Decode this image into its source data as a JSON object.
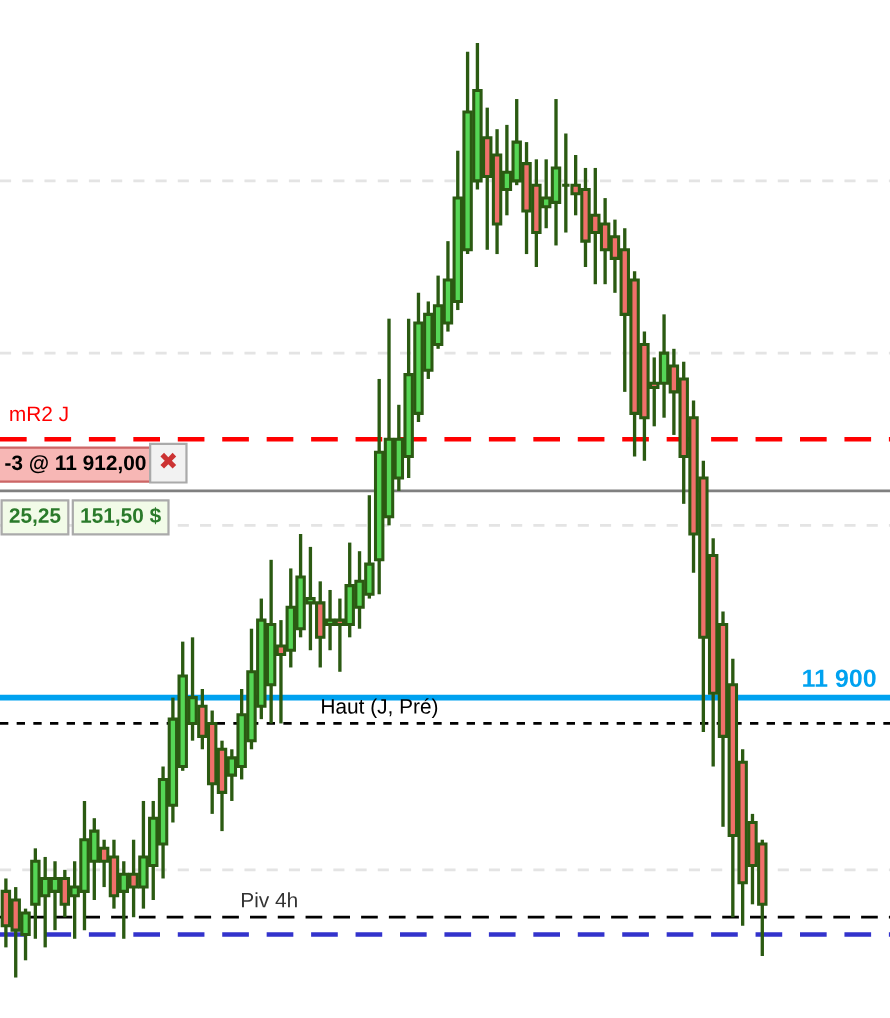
{
  "chart_data": {
    "type": "candlestick",
    "categories": [
      null,
      null,
      null,
      null,
      null,
      null,
      null,
      null,
      null,
      null,
      null,
      null,
      null,
      null,
      null,
      null,
      null,
      null,
      null,
      null,
      null,
      null,
      null,
      null,
      null,
      null,
      null,
      null,
      null,
      null,
      null,
      null,
      null,
      null,
      null,
      null,
      null,
      null,
      null,
      null,
      null,
      null,
      null,
      null,
      null,
      null,
      null,
      null,
      null,
      null,
      null,
      null,
      null,
      null,
      null,
      null,
      null,
      null,
      null,
      null,
      null,
      null,
      null,
      null,
      null,
      null,
      null,
      null,
      null,
      null,
      null,
      null,
      null,
      null,
      null,
      null,
      null,
      null
    ],
    "ohlc": [
      [
        11888.75,
        11889.5,
        11885.5,
        11886.75
      ],
      [
        11888.25,
        11889,
        11883.75,
        11886.5
      ],
      [
        11886.25,
        11887.75,
        11884.75,
        11887.5
      ],
      [
        11888,
        11891.25,
        11886,
        11890.5
      ],
      [
        11888.5,
        11890.75,
        11885.5,
        11889.5
      ],
      [
        11888.75,
        11890.5,
        11886.5,
        11889.5
      ],
      [
        11889.5,
        11890,
        11887.25,
        11888
      ],
      [
        11888.5,
        11890.5,
        11886,
        11889
      ],
      [
        11888.75,
        11894,
        11886.5,
        11891.75
      ],
      [
        11890.5,
        11893,
        11888.25,
        11892.25
      ],
      [
        11891.25,
        11891.75,
        11889,
        11890.5
      ],
      [
        11890.75,
        11891.75,
        11887.75,
        11888.5
      ],
      [
        11888.75,
        11890.5,
        11886,
        11889.75
      ],
      [
        11889.75,
        11891.75,
        11887.25,
        11889
      ],
      [
        11889,
        11894,
        11887.75,
        11890.75
      ],
      [
        11890.25,
        11894,
        11888.25,
        11893
      ],
      [
        11891.5,
        11896,
        11889.5,
        11895.25
      ],
      [
        11893.75,
        11900,
        11892.75,
        11898.75
      ],
      [
        11896,
        11903.25,
        11895.75,
        11901.25
      ],
      [
        11898.5,
        11903.5,
        11897.5,
        11900
      ],
      [
        11899.5,
        11900.5,
        11897,
        11897.75
      ],
      [
        11898.5,
        11899.25,
        11893.25,
        11895
      ],
      [
        11897,
        11897.5,
        11892.25,
        11894.5
      ],
      [
        11895.5,
        11897,
        11894,
        11896.5
      ],
      [
        11896,
        11900.5,
        11895.25,
        11899
      ],
      [
        11897.5,
        11904,
        11897,
        11901.5
      ],
      [
        11899.5,
        11905.75,
        11898.75,
        11904.5
      ],
      [
        11900.75,
        11908,
        11898.5,
        11904.25
      ],
      [
        11903,
        11904.5,
        11898.5,
        11902.5
      ],
      [
        11902.75,
        11907.5,
        11901.75,
        11905.25
      ],
      [
        11904,
        11909.5,
        11903.5,
        11907
      ],
      [
        11905.5,
        11908.75,
        11902.75,
        11905.75
      ],
      [
        11905.5,
        11906.75,
        11901.75,
        11903.5
      ],
      [
        11904.25,
        11906.25,
        11902.75,
        11904.5
      ],
      [
        11904.5,
        11905.75,
        11901.5,
        11904.25
      ],
      [
        11904.25,
        11909,
        11903.5,
        11906.5
      ],
      [
        11905.25,
        11908.5,
        11904,
        11906.75
      ],
      [
        11906,
        11911.75,
        11905.75,
        11907.75
      ],
      [
        11908,
        11918.5,
        11906,
        11914.25
      ],
      [
        11910.5,
        11922,
        11910,
        11915
      ],
      [
        11912.75,
        11917,
        11912,
        11915
      ],
      [
        11914,
        11922,
        11912.75,
        11918.75
      ],
      [
        11916.5,
        11923.5,
        11916,
        11921.75
      ],
      [
        11919,
        11923,
        11918.5,
        11922.25
      ],
      [
        11920.5,
        11924.5,
        11920.25,
        11922.75
      ],
      [
        11921.75,
        11926.5,
        11921.25,
        11924.25
      ],
      [
        11923,
        11931.75,
        11922.5,
        11929
      ],
      [
        11926,
        11937.5,
        11925.75,
        11934
      ],
      [
        11930,
        11938,
        11929.5,
        11935.25
      ],
      [
        11932.5,
        11934.25,
        11926,
        11930.25
      ],
      [
        11931.5,
        11933,
        11925.75,
        11927.5
      ],
      [
        11929.5,
        11933.25,
        11928,
        11930.5
      ],
      [
        11930,
        11934.75,
        11929.75,
        11932.25
      ],
      [
        11931,
        11932.25,
        11925.75,
        11928.25
      ],
      [
        11929.75,
        11931.25,
        11925,
        11927
      ],
      [
        11928.5,
        11931.25,
        11927.25,
        11929
      ],
      [
        11928.75,
        11934.75,
        11926.25,
        11930.75
      ],
      [
        11929.75,
        11932.75,
        11927,
        11929.75
      ],
      [
        11929.75,
        11931.5,
        11928,
        11929.25
      ],
      [
        11929.5,
        11930.75,
        11925,
        11926.5
      ],
      [
        11928,
        11930.75,
        11924,
        11927
      ],
      [
        11927.5,
        11929,
        11924,
        11926
      ],
      [
        11926.75,
        11927.75,
        11923.5,
        11925.5
      ],
      [
        11926,
        11927.25,
        11917.75,
        11922.25
      ],
      [
        11924.25,
        11924.75,
        11914,
        11916.5
      ],
      [
        11920.5,
        11921.25,
        11913.75,
        11916.25
      ],
      [
        11918.25,
        11919.75,
        11915.75,
        11918
      ],
      [
        11918.25,
        11922.25,
        11916.25,
        11920
      ],
      [
        11919.25,
        11920.25,
        11915.25,
        11917.75
      ],
      [
        11918.5,
        11919.5,
        11911.25,
        11914
      ],
      [
        11916.25,
        11917.25,
        11907.25,
        11909.5
      ],
      [
        11912.75,
        11913.75,
        11898,
        11903.5
      ],
      [
        11908.25,
        11909.25,
        11896,
        11900.25
      ],
      [
        11904.25,
        11905,
        11892.5,
        11897.75
      ],
      [
        11900.75,
        11902.25,
        11887.25,
        11892
      ],
      [
        11896.25,
        11897,
        11886.75,
        11889.25
      ],
      [
        11892.75,
        11893.25,
        11888,
        11890.25
      ],
      [
        11891.5,
        11891.75,
        11885,
        11888
      ]
    ],
    "ylim": [
      11881.4,
      11940.5
    ],
    "yticks": [
      {
        "value": 11890,
        "label": null
      },
      {
        "value": 11900,
        "label": null
      },
      {
        "value": 11910,
        "label": null
      },
      {
        "value": 11920,
        "label": null
      },
      {
        "value": 11930,
        "label": null
      }
    ],
    "grid": "y",
    "ref_lines": [
      {
        "axis": "y",
        "value": 11915,
        "label": "mR2 J",
        "color": "#ff0000",
        "line_style": "dashed"
      },
      {
        "axis": "y",
        "value": 11912,
        "label": "-3 @ 11 912,00",
        "color": "#808080",
        "line_style": "solid"
      },
      {
        "axis": "y",
        "value": 11900,
        "label": "11 900",
        "color": "#00a2f0",
        "line_style": "solid"
      },
      {
        "axis": "y",
        "value": 11898.5,
        "label": "Haut (J, Pré)",
        "color": "#000000",
        "line_style": "dotted"
      },
      {
        "axis": "y",
        "value": 11887.25,
        "label": "Piv 4h",
        "color": "#000000",
        "line_style": "dashed"
      },
      {
        "axis": "y",
        "value": 11886.25,
        "color": "#3333cc",
        "line_style": "dashed"
      }
    ],
    "annotations": [
      "✖",
      "25,25",
      "151,50 $"
    ]
  }
}
